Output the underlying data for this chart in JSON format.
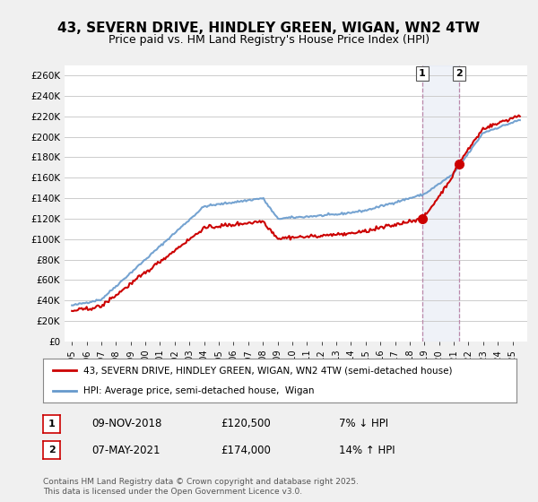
{
  "title": "43, SEVERN DRIVE, HINDLEY GREEN, WIGAN, WN2 4TW",
  "subtitle": "Price paid vs. HM Land Registry's House Price Index (HPI)",
  "title_fontsize": 11,
  "subtitle_fontsize": 9,
  "ylabel_ticks": [
    "£0",
    "£20K",
    "£40K",
    "£60K",
    "£80K",
    "£100K",
    "£120K",
    "£140K",
    "£160K",
    "£180K",
    "£200K",
    "£220K",
    "£240K",
    "£260K"
  ],
  "ytick_values": [
    0,
    20000,
    40000,
    60000,
    80000,
    100000,
    120000,
    140000,
    160000,
    180000,
    200000,
    220000,
    240000,
    260000
  ],
  "ylim": [
    0,
    270000
  ],
  "xlim_start": 1995,
  "xlim_end": 2026,
  "background_color": "#f0f0f0",
  "plot_bg_color": "#ffffff",
  "hpi_color": "#6699cc",
  "price_color": "#cc0000",
  "sale1_date": 2018.86,
  "sale1_price": 120500,
  "sale1_label": "1",
  "sale2_date": 2021.36,
  "sale2_price": 174000,
  "sale2_label": "2",
  "legend_line1": "43, SEVERN DRIVE, HINDLEY GREEN, WIGAN, WN2 4TW (semi-detached house)",
  "legend_line2": "HPI: Average price, semi-detached house,  Wigan",
  "annotation1_date": "09-NOV-2018",
  "annotation1_price": "£120,500",
  "annotation1_hpi": "7% ↓ HPI",
  "annotation2_date": "07-MAY-2021",
  "annotation2_price": "£174,000",
  "annotation2_hpi": "14% ↑ HPI",
  "footer": "Contains HM Land Registry data © Crown copyright and database right 2025.\nThis data is licensed under the Open Government Licence v3.0."
}
